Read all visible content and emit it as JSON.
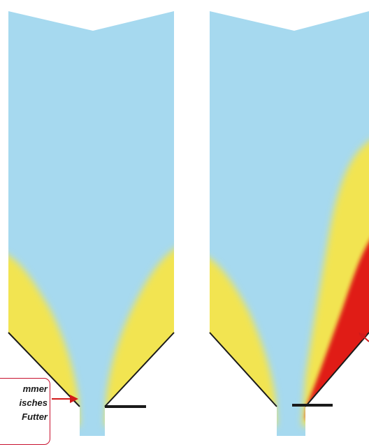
{
  "callout": {
    "line1": "mmer",
    "line2": "isches",
    "line3": "Futter"
  },
  "colors": {
    "fluid": "#a6d9ef",
    "yellow_zone": "#f2e451",
    "red_zone": "#e01a14",
    "outline": "#1a1a1a",
    "callout_border": "#c8102e",
    "arrow": "#d11a1a"
  },
  "panels": [
    {
      "name": "left-silo",
      "zones": [
        "yellow-left",
        "yellow-right"
      ]
    },
    {
      "name": "right-silo",
      "zones": [
        "yellow-left",
        "yellow-right",
        "red-right"
      ]
    }
  ]
}
